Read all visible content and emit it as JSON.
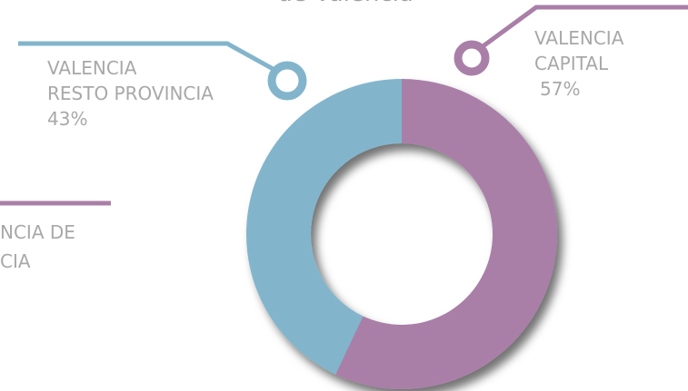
{
  "chart_data": {
    "type": "pie",
    "title": "de Valencia",
    "categories": [
      "VALENCIA\nCAPITAL",
      "VALENCIA\nRESTO PROVINCIA"
    ],
    "values": [
      57,
      43
    ],
    "value_labels": [
      "57%",
      "43%"
    ],
    "colors": [
      "#a97fa8",
      "#82b5cc"
    ],
    "annotations": [
      "NCIA DE",
      "CIA"
    ]
  }
}
